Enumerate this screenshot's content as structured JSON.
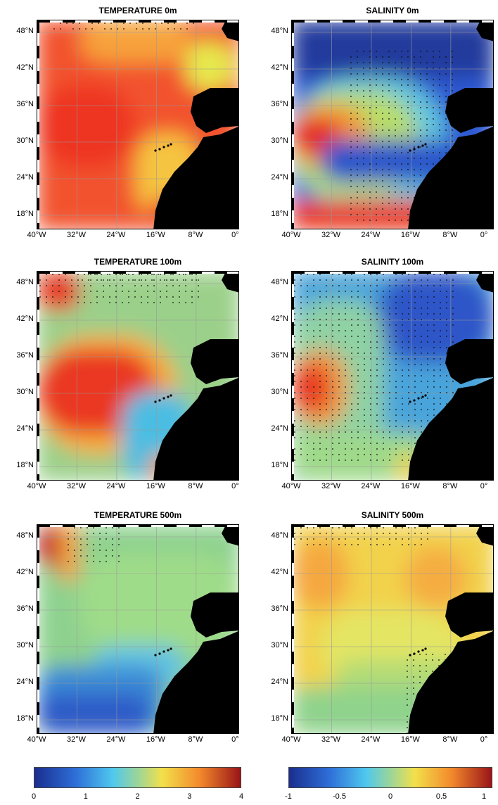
{
  "panels": [
    {
      "title": "TEMPERATURE 0m"
    },
    {
      "title": "SALINITY 0m"
    },
    {
      "title": "TEMPERATURE 100m"
    },
    {
      "title": "SALINITY 100m"
    },
    {
      "title": "TEMPERATURE 500m"
    },
    {
      "title": "SALINITY 500m"
    }
  ],
  "y_ticks": [
    "48°N",
    "42°N",
    "36°N",
    "30°N",
    "24°N",
    "18°N"
  ],
  "x_ticks": [
    "40°W",
    "32°W",
    "24°W",
    "16°W",
    "8°W",
    "0°"
  ],
  "colorbars": [
    {
      "ticks": [
        "0",
        "1",
        "2",
        "3",
        "4"
      ],
      "range": [
        0,
        4
      ]
    },
    {
      "ticks": [
        "-1",
        "-0.5",
        "0",
        "0.5",
        "1"
      ],
      "range": [
        -1,
        1
      ]
    }
  ],
  "colors": {
    "land": "#000000",
    "grid": "#9a9a9a"
  }
}
